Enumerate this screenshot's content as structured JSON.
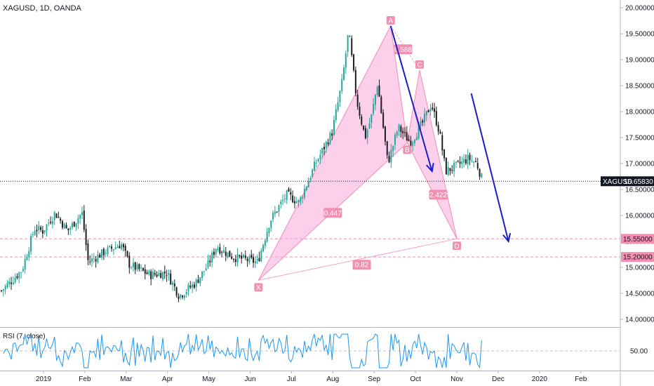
{
  "header": {
    "title": "XAGUSD, 1D, OANDA"
  },
  "rsi": {
    "title": "RSI (7, close)",
    "level_label": "50.00"
  },
  "colors": {
    "up": "#26a69a",
    "down": "#1e1e1e",
    "pattern_fill": "#f9a8d8",
    "pattern_line": "#f48fb1",
    "label_bg": "#f48fb1",
    "arrow": "#1c1cc8",
    "rsi_line": "#2196f3",
    "price_tag": "#131722",
    "level_tag": "#f48fb1"
  },
  "chart_data": {
    "type": "candlestick",
    "symbol": "XAGUSD",
    "ylim": [
      13.85,
      20.15
    ],
    "y_ticks": [
      "20.00000",
      "19.50000",
      "19.00000",
      "18.50000",
      "18.00000",
      "17.50000",
      "17.00000",
      "16.50000",
      "16.00000",
      "15.50000",
      "15.00000",
      "14.50000",
      "14.00000"
    ],
    "x_ticks": [
      "2019",
      "Feb",
      "Mar",
      "Apr",
      "May",
      "Jun",
      "Jul",
      "Aug",
      "Sep",
      "Oct",
      "Nov",
      "Dec",
      "2020",
      "Feb"
    ],
    "last_price": {
      "label": "XAGUSD",
      "value": "16.65830",
      "y": 16.6583
    },
    "levels": [
      {
        "value": "15.55000",
        "y": 15.55
      },
      {
        "value": "15.20000",
        "y": 15.2
      }
    ],
    "anchors": [
      {
        "m": 0,
        "p": 14.55
      },
      {
        "m": 0.5,
        "p": 14.95
      },
      {
        "m": 0.8,
        "p": 15.75
      },
      {
        "m": 1.0,
        "p": 15.7
      },
      {
        "m": 1.3,
        "p": 16.05
      },
      {
        "m": 1.6,
        "p": 15.7
      },
      {
        "m": 1.95,
        "p": 16.05
      },
      {
        "m": 2.1,
        "p": 15.1
      },
      {
        "m": 2.5,
        "p": 15.3
      },
      {
        "m": 2.9,
        "p": 15.45
      },
      {
        "m": 3.1,
        "p": 15.05
      },
      {
        "m": 3.6,
        "p": 14.85
      },
      {
        "m": 4.0,
        "p": 14.9
      },
      {
        "m": 4.3,
        "p": 14.45
      },
      {
        "m": 4.7,
        "p": 14.7
      },
      {
        "m": 5.0,
        "p": 15.05
      },
      {
        "m": 5.2,
        "p": 15.4
      },
      {
        "m": 5.6,
        "p": 15.2
      },
      {
        "m": 6.2,
        "p": 15.1
      },
      {
        "m": 6.5,
        "p": 15.9
      },
      {
        "m": 6.9,
        "p": 16.4
      },
      {
        "m": 7.2,
        "p": 16.25
      },
      {
        "m": 7.6,
        "p": 17.0
      },
      {
        "m": 8.0,
        "p": 17.6
      },
      {
        "m": 8.25,
        "p": 18.6
      },
      {
        "m": 8.4,
        "p": 19.55
      },
      {
        "m": 8.6,
        "p": 18.2
      },
      {
        "m": 8.8,
        "p": 17.5
      },
      {
        "m": 8.95,
        "p": 17.9
      },
      {
        "m": 9.1,
        "p": 18.55
      },
      {
        "m": 9.35,
        "p": 17.0
      },
      {
        "m": 9.6,
        "p": 17.7
      },
      {
        "m": 9.9,
        "p": 17.4
      },
      {
        "m": 10.2,
        "p": 17.8
      },
      {
        "m": 10.4,
        "p": 18.15
      },
      {
        "m": 10.6,
        "p": 17.6
      },
      {
        "m": 10.75,
        "p": 16.85
      },
      {
        "m": 11.0,
        "p": 16.95
      },
      {
        "m": 11.3,
        "p": 17.1
      },
      {
        "m": 11.5,
        "p": 17.0
      },
      {
        "m": 11.65,
        "p": 16.65
      }
    ],
    "harmonic_pattern": {
      "points": [
        {
          "label": "X",
          "m": 5.2,
          "p": 14.75
        },
        {
          "label": "A",
          "m": 8.4,
          "p": 19.65
        },
        {
          "label": "B",
          "m": 8.8,
          "p": 17.4
        },
        {
          "label": "C",
          "m": 9.1,
          "p": 18.8
        },
        {
          "label": "D",
          "m": 10.0,
          "p": 15.55
        }
      ],
      "ratios": [
        {
          "label": "0.588",
          "m": 8.7,
          "p": 19.2
        },
        {
          "label": "0.447",
          "m": 7.0,
          "p": 16.05
        },
        {
          "label": "2.422",
          "m": 9.55,
          "p": 16.4
        },
        {
          "label": "0.82",
          "m": 7.7,
          "p": 15.05
        }
      ]
    },
    "arrows": [
      {
        "from": {
          "m": 8.4,
          "p": 19.65
        },
        "to": {
          "m": 9.4,
          "p": 16.85
        }
      },
      {
        "from": {
          "m": 10.35,
          "p": 18.35
        },
        "to": {
          "m": 11.25,
          "p": 15.5
        }
      }
    ],
    "rsi": {
      "level": 50
    }
  }
}
